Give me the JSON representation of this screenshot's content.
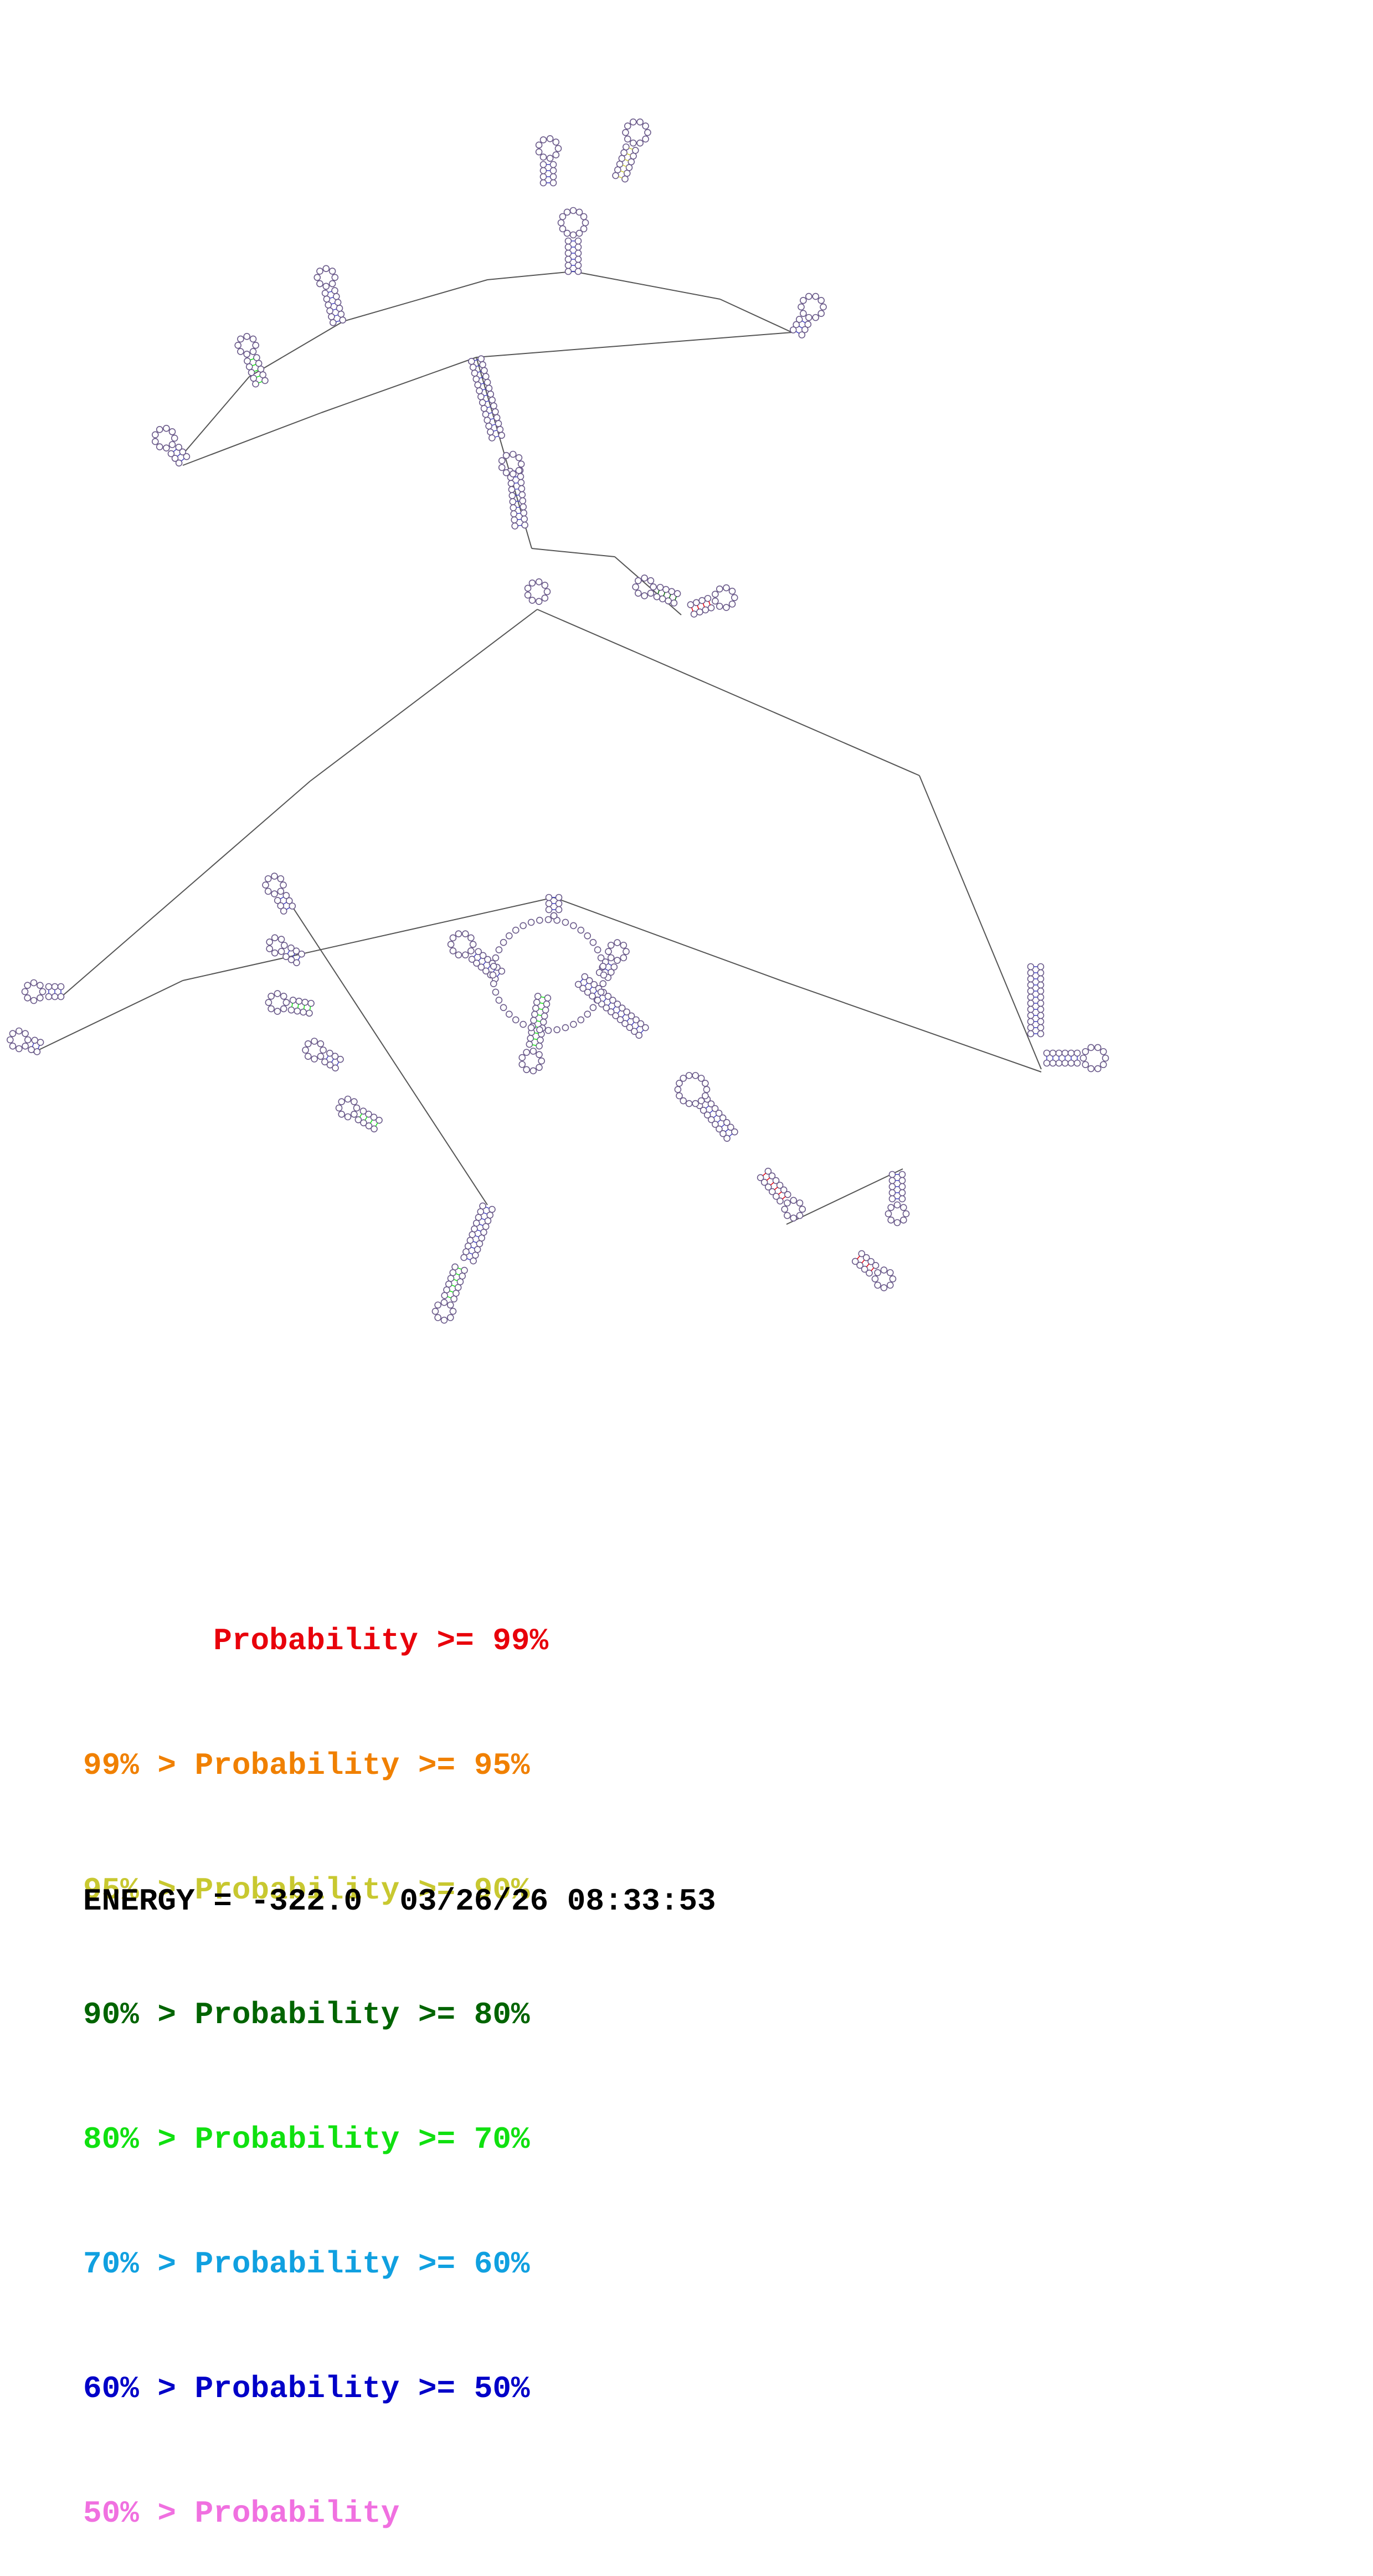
{
  "legend": [
    {
      "text": "       Probability >= 99%",
      "color": "#e8000b"
    },
    {
      "text": "99% > Probability >= 95%",
      "color": "#f08000"
    },
    {
      "text": "95% > Probability >= 90%",
      "color": "#c8c830"
    },
    {
      "text": "90% > Probability >= 80%",
      "color": "#006400"
    },
    {
      "text": "80% > Probability >= 70%",
      "color": "#10e010"
    },
    {
      "text": "70% > Probability >= 60%",
      "color": "#10a0e0"
    },
    {
      "text": "60% > Probability >= 50%",
      "color": "#0000c8"
    },
    {
      "text": "50% > Probability",
      "color": "#f070e0"
    }
  ],
  "footer": {
    "energy": "ENERGY = -322.0",
    "timestamp": "03/26/26 08:33:53"
  },
  "colors": {
    "backbone": "#555555",
    "nucleotide_outline": "#6a5a8a",
    "helix_pair": "#4040c0"
  }
}
